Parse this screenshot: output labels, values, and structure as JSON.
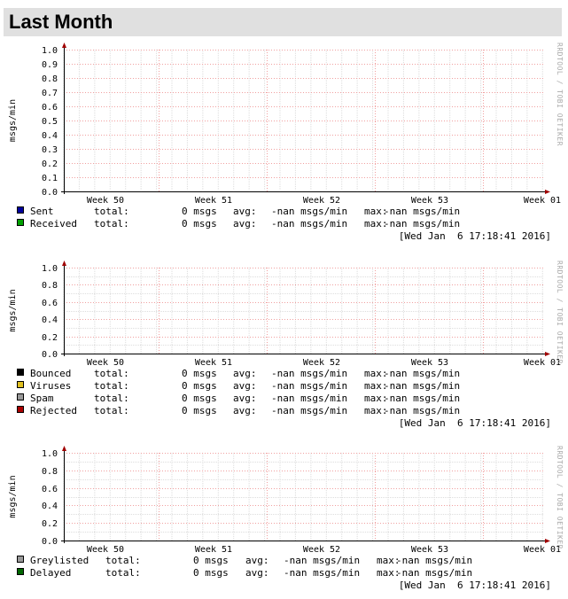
{
  "page": {
    "title": "Last Month"
  },
  "watermark": "RRDTOOL / TOBI OETIKER",
  "chart_data": [
    {
      "type": "line",
      "ylabel": "msgs/min",
      "yticks": [
        "1.0",
        "0.9",
        "0.8",
        "0.7",
        "0.6",
        "0.5",
        "0.4",
        "0.3",
        "0.2",
        "0.1",
        "0.0"
      ],
      "ylim": [
        0,
        1
      ],
      "xticks": [
        "Week 50",
        "Week 51",
        "Week 52",
        "Week 53",
        "Week 01"
      ],
      "grid": true,
      "series": [
        {
          "name": "Sent",
          "color": "#00009c",
          "total": "0 msgs",
          "avg": "-nan msgs/min",
          "max": "-nan msgs/min",
          "values": []
        },
        {
          "name": "Received",
          "color": "#00a000",
          "total": "0 msgs",
          "avg": "-nan msgs/min",
          "max": "-nan msgs/min",
          "values": []
        }
      ],
      "timestamp": "[Wed Jan  6 17:18:41 2016]"
    },
    {
      "type": "line",
      "ylabel": "msgs/min",
      "yticks": [
        "1.0",
        "0.8",
        "0.6",
        "0.4",
        "0.2",
        "0.0"
      ],
      "ylim": [
        0,
        1
      ],
      "xticks": [
        "Week 50",
        "Week 51",
        "Week 52",
        "Week 53",
        "Week 01"
      ],
      "grid": true,
      "series": [
        {
          "name": "Bounced",
          "color": "#000000",
          "total": "0 msgs",
          "avg": "-nan msgs/min",
          "max": "-nan msgs/min",
          "values": []
        },
        {
          "name": "Viruses",
          "color": "#e0c020",
          "total": "0 msgs",
          "avg": "-nan msgs/min",
          "max": "-nan msgs/min",
          "values": []
        },
        {
          "name": "Spam",
          "color": "#999999",
          "total": "0 msgs",
          "avg": "-nan msgs/min",
          "max": "-nan msgs/min",
          "values": []
        },
        {
          "name": "Rejected",
          "color": "#aa0000",
          "total": "0 msgs",
          "avg": "-nan msgs/min",
          "max": "-nan msgs/min",
          "values": []
        }
      ],
      "timestamp": "[Wed Jan  6 17:18:41 2016]"
    },
    {
      "type": "line",
      "ylabel": "msgs/min",
      "yticks": [
        "1.0",
        "0.8",
        "0.6",
        "0.4",
        "0.2",
        "0.0"
      ],
      "ylim": [
        0,
        1
      ],
      "xticks": [
        "Week 50",
        "Week 51",
        "Week 52",
        "Week 53",
        "Week 01"
      ],
      "grid": true,
      "series": [
        {
          "name": "Greylisted",
          "color": "#999999",
          "total": "0 msgs",
          "avg": "-nan msgs/min",
          "max": "-nan msgs/min",
          "values": []
        },
        {
          "name": "Delayed",
          "color": "#006600",
          "total": "0 msgs",
          "avg": "-nan msgs/min",
          "max": "-nan msgs/min",
          "values": []
        }
      ],
      "timestamp": "[Wed Jan  6 17:18:41 2016]"
    }
  ]
}
